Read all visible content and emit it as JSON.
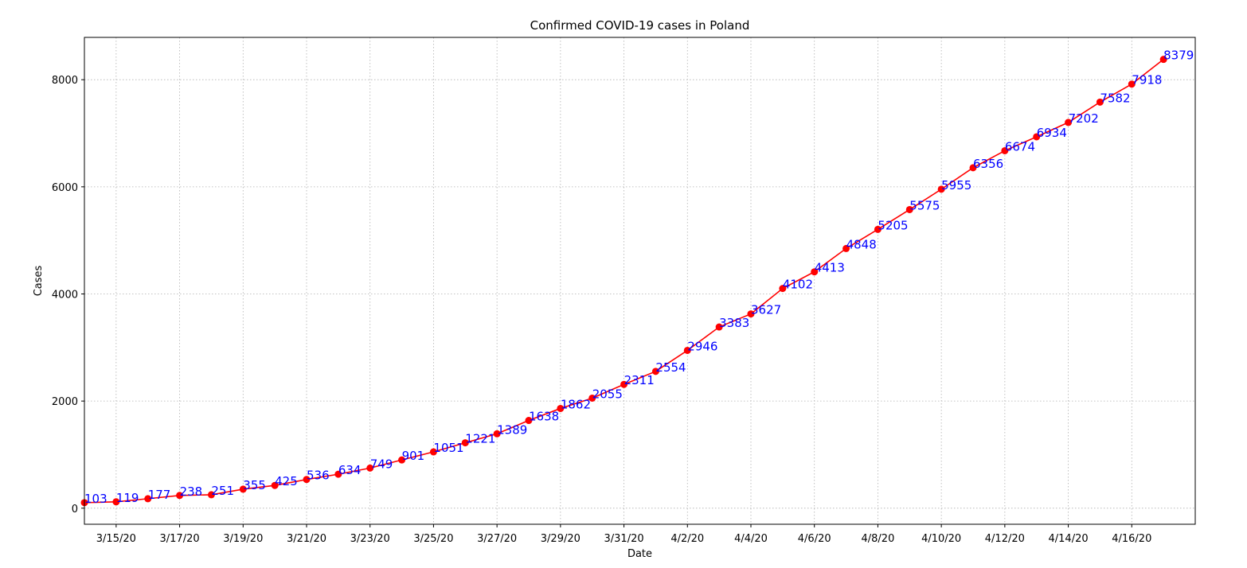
{
  "chart_data": {
    "type": "line",
    "title": "Confirmed COVID-19 cases in Poland",
    "xlabel": "Date",
    "ylabel": "Cases",
    "x": [
      "3/14/20",
      "3/15/20",
      "3/16/20",
      "3/17/20",
      "3/18/20",
      "3/19/20",
      "3/20/20",
      "3/21/20",
      "3/22/20",
      "3/23/20",
      "3/24/20",
      "3/25/20",
      "3/26/20",
      "3/27/20",
      "3/28/20",
      "3/29/20",
      "3/30/20",
      "3/31/20",
      "4/1/20",
      "4/2/20",
      "4/3/20",
      "4/4/20",
      "4/5/20",
      "4/6/20",
      "4/7/20",
      "4/8/20",
      "4/9/20",
      "4/10/20",
      "4/11/20",
      "4/12/20",
      "4/13/20",
      "4/14/20",
      "4/15/20",
      "4/16/20",
      "4/17/20"
    ],
    "series": [
      {
        "values": [
          103,
          119,
          177,
          238,
          251,
          355,
          425,
          536,
          634,
          749,
          901,
          1051,
          1221,
          1389,
          1638,
          1862,
          2055,
          2311,
          2554,
          2946,
          3383,
          3627,
          4102,
          4413,
          4848,
          5205,
          5575,
          5955,
          6356,
          6674,
          6934,
          7202,
          7582,
          7918,
          8379
        ],
        "color": "#ff0000",
        "marker_color": "#ff0000"
      }
    ],
    "data_label_color": "#0000ff",
    "x_tick_labels": [
      "3/15/20",
      "3/17/20",
      "3/19/20",
      "3/21/20",
      "3/23/20",
      "3/25/20",
      "3/27/20",
      "3/29/20",
      "3/31/20",
      "4/2/20",
      "4/4/20",
      "4/6/20",
      "4/8/20",
      "4/10/20",
      "4/12/20",
      "4/14/20",
      "4/16/20"
    ],
    "y_ticks": [
      0,
      2000,
      4000,
      6000,
      8000
    ],
    "ylim": [
      -300,
      8790
    ],
    "xlim": [
      "3/14/20",
      "4/17/20"
    ],
    "x_margin_right_days": 1,
    "grid": true,
    "legend": "none"
  }
}
